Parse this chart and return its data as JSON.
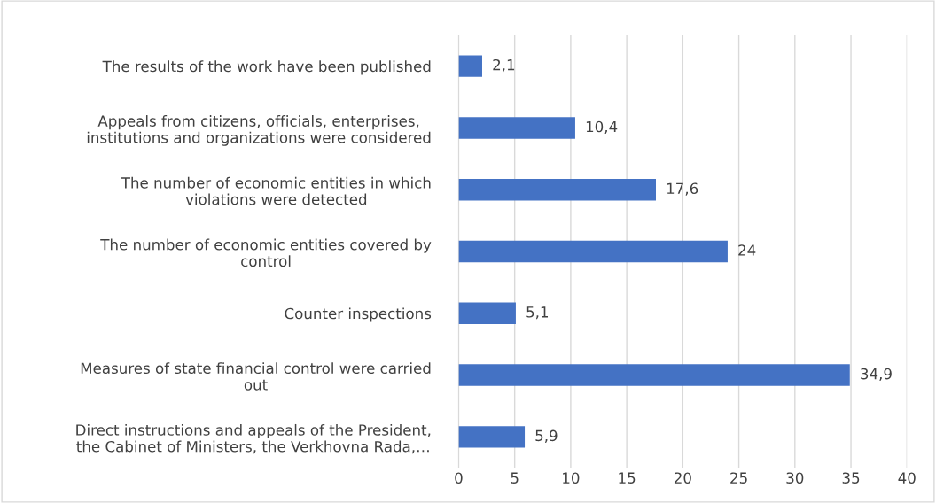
{
  "chart_data": {
    "type": "bar",
    "orientation": "horizontal",
    "categories": [
      "The results of the work have been published",
      "Appeals from citizens, officials, enterprises,\ninstitutions and organizations were considered",
      "The number of economic entities in which\nviolations were detected",
      "The number of economic entities covered by\ncontrol",
      "Counter inspections",
      "Measures of state financial control were carried\nout",
      "Direct instructions and appeals of the President,\nthe Cabinet of Ministers, the Verkhovna Rada,…"
    ],
    "values": [
      2.1,
      10.4,
      17.6,
      24,
      5.1,
      34.9,
      5.9
    ],
    "value_labels": [
      "2,1",
      "10,4",
      "17,6",
      "24",
      "5,1",
      "34,9",
      "5,9"
    ],
    "color": "#4472c4",
    "xlim": [
      0,
      40
    ],
    "xticks": [
      0,
      5,
      10,
      15,
      20,
      25,
      30,
      35,
      40
    ],
    "grid": "x",
    "legend": false
  }
}
